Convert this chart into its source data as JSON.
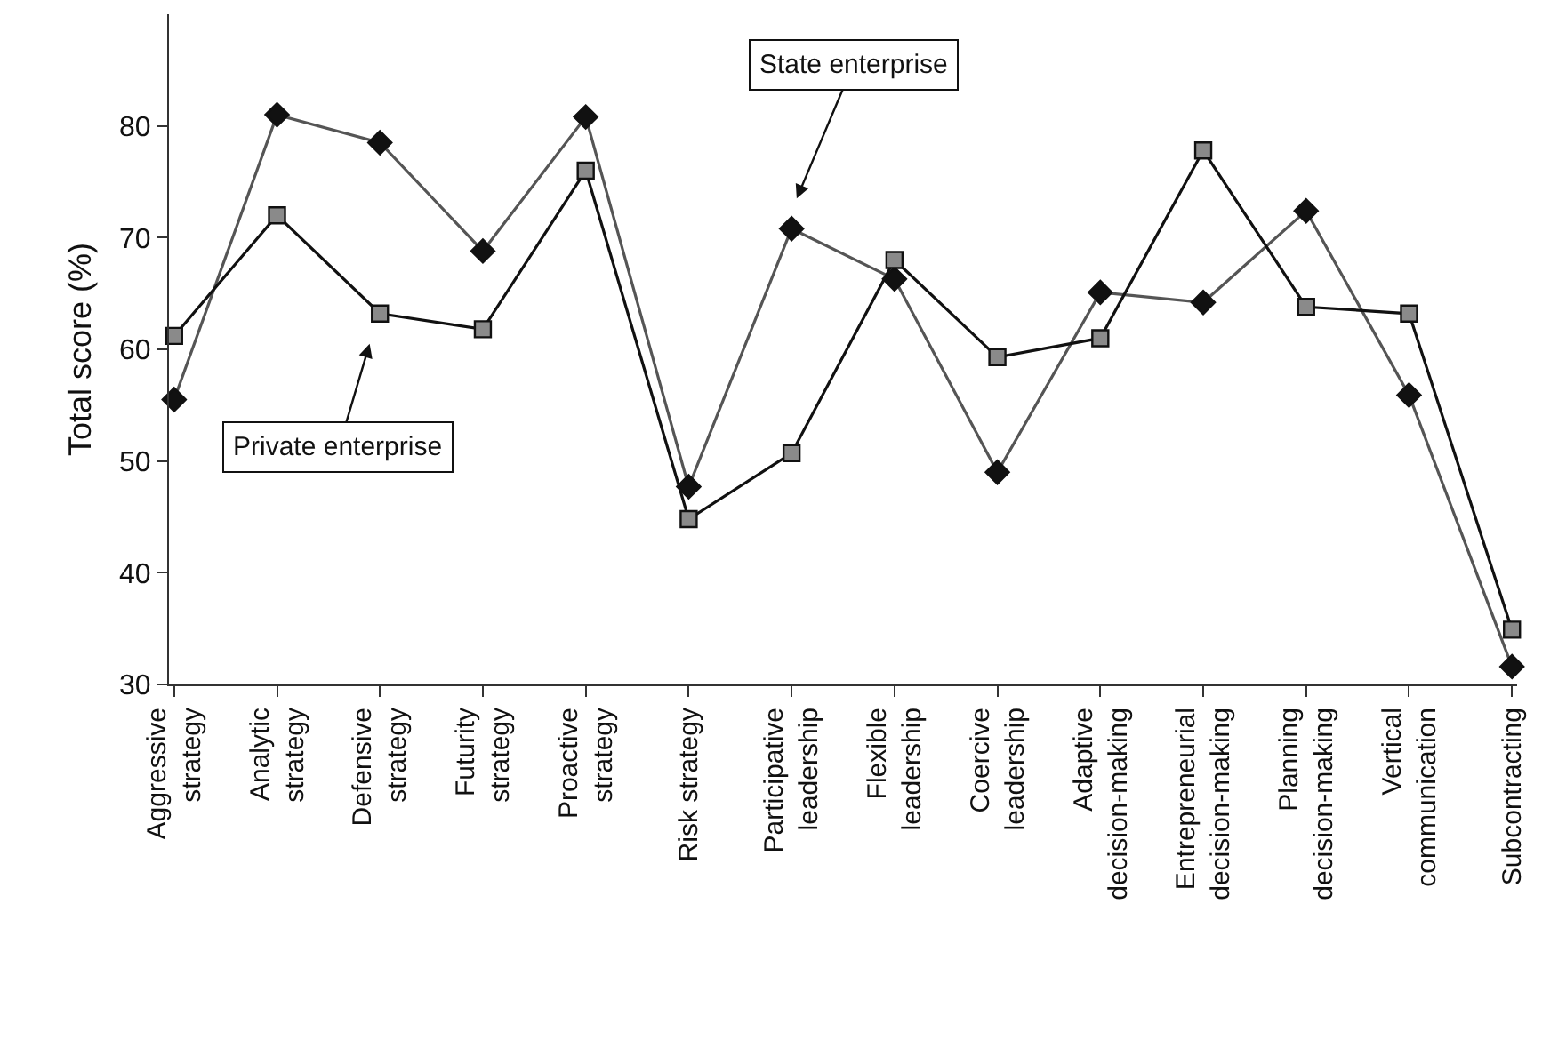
{
  "chart_data": {
    "type": "line",
    "ylabel": "Total score (%)",
    "categories": [
      "Aggressive\nstrategy",
      "Analytic\nstrategy",
      "Defensive\nstrategy",
      "Futurity\nstrategy",
      "Proactive\nstrategy",
      "Risk strategy",
      "Participative\nleadership",
      "Flexible\nleadership",
      "Coercive\nleadership",
      "Adaptive\ndecision-making",
      "Entrepreneurial\ndecision-making",
      "Planning\ndecision-making",
      "Vertical\ncommunication",
      "Subcontracting"
    ],
    "series": [
      {
        "name": "State enterprise",
        "color": "#555555",
        "marker": "diamond",
        "values": [
          55.5,
          81,
          78.5,
          68.8,
          80.8,
          47.7,
          70.8,
          66.3,
          49,
          65.1,
          64.2,
          72.4,
          55.9,
          31.6
        ]
      },
      {
        "name": "Private enterprise",
        "color": "#111111",
        "marker": "square",
        "values": [
          61.2,
          72,
          63.2,
          61.8,
          76,
          44.8,
          50.7,
          68,
          59.3,
          61,
          77.8,
          63.8,
          63.2,
          34.9
        ]
      }
    ],
    "ylim": [
      30,
      90
    ],
    "yticks": [
      30,
      40,
      50,
      60,
      70,
      80
    ],
    "legend": false
  }
}
